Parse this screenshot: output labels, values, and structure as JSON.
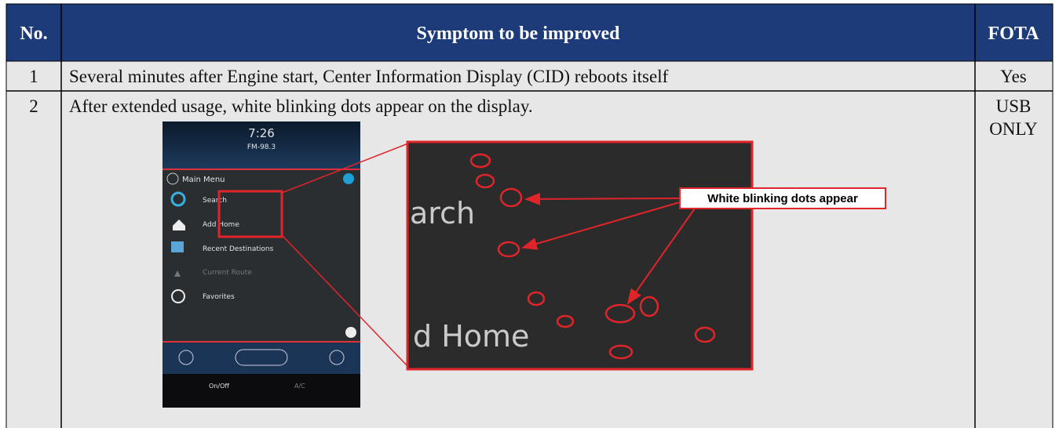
{
  "table": {
    "header": [
      "No.",
      "Symptom to be improved",
      "FOTA"
    ],
    "rows": [
      [
        "1",
        "Several minutes after Engine start, Center Information Display (CID) reboots itself",
        "Yes"
      ],
      [
        "2",
        "After extended usage, white blinking dots appear on the display.",
        "USB ONLY"
      ]
    ]
  },
  "screenshot": {
    "time": "7:26",
    "station": "FM-98.3",
    "menu_title": "Main Menu",
    "menu_items": [
      "Search",
      "Add Home",
      "Recent Destinations",
      "Current Route",
      "Favorites"
    ],
    "buttons": [
      "On/Off",
      "A/C"
    ]
  },
  "zoom": {
    "texts": [
      "arch",
      "d Home"
    ],
    "callout": "White blinking dots appear"
  }
}
